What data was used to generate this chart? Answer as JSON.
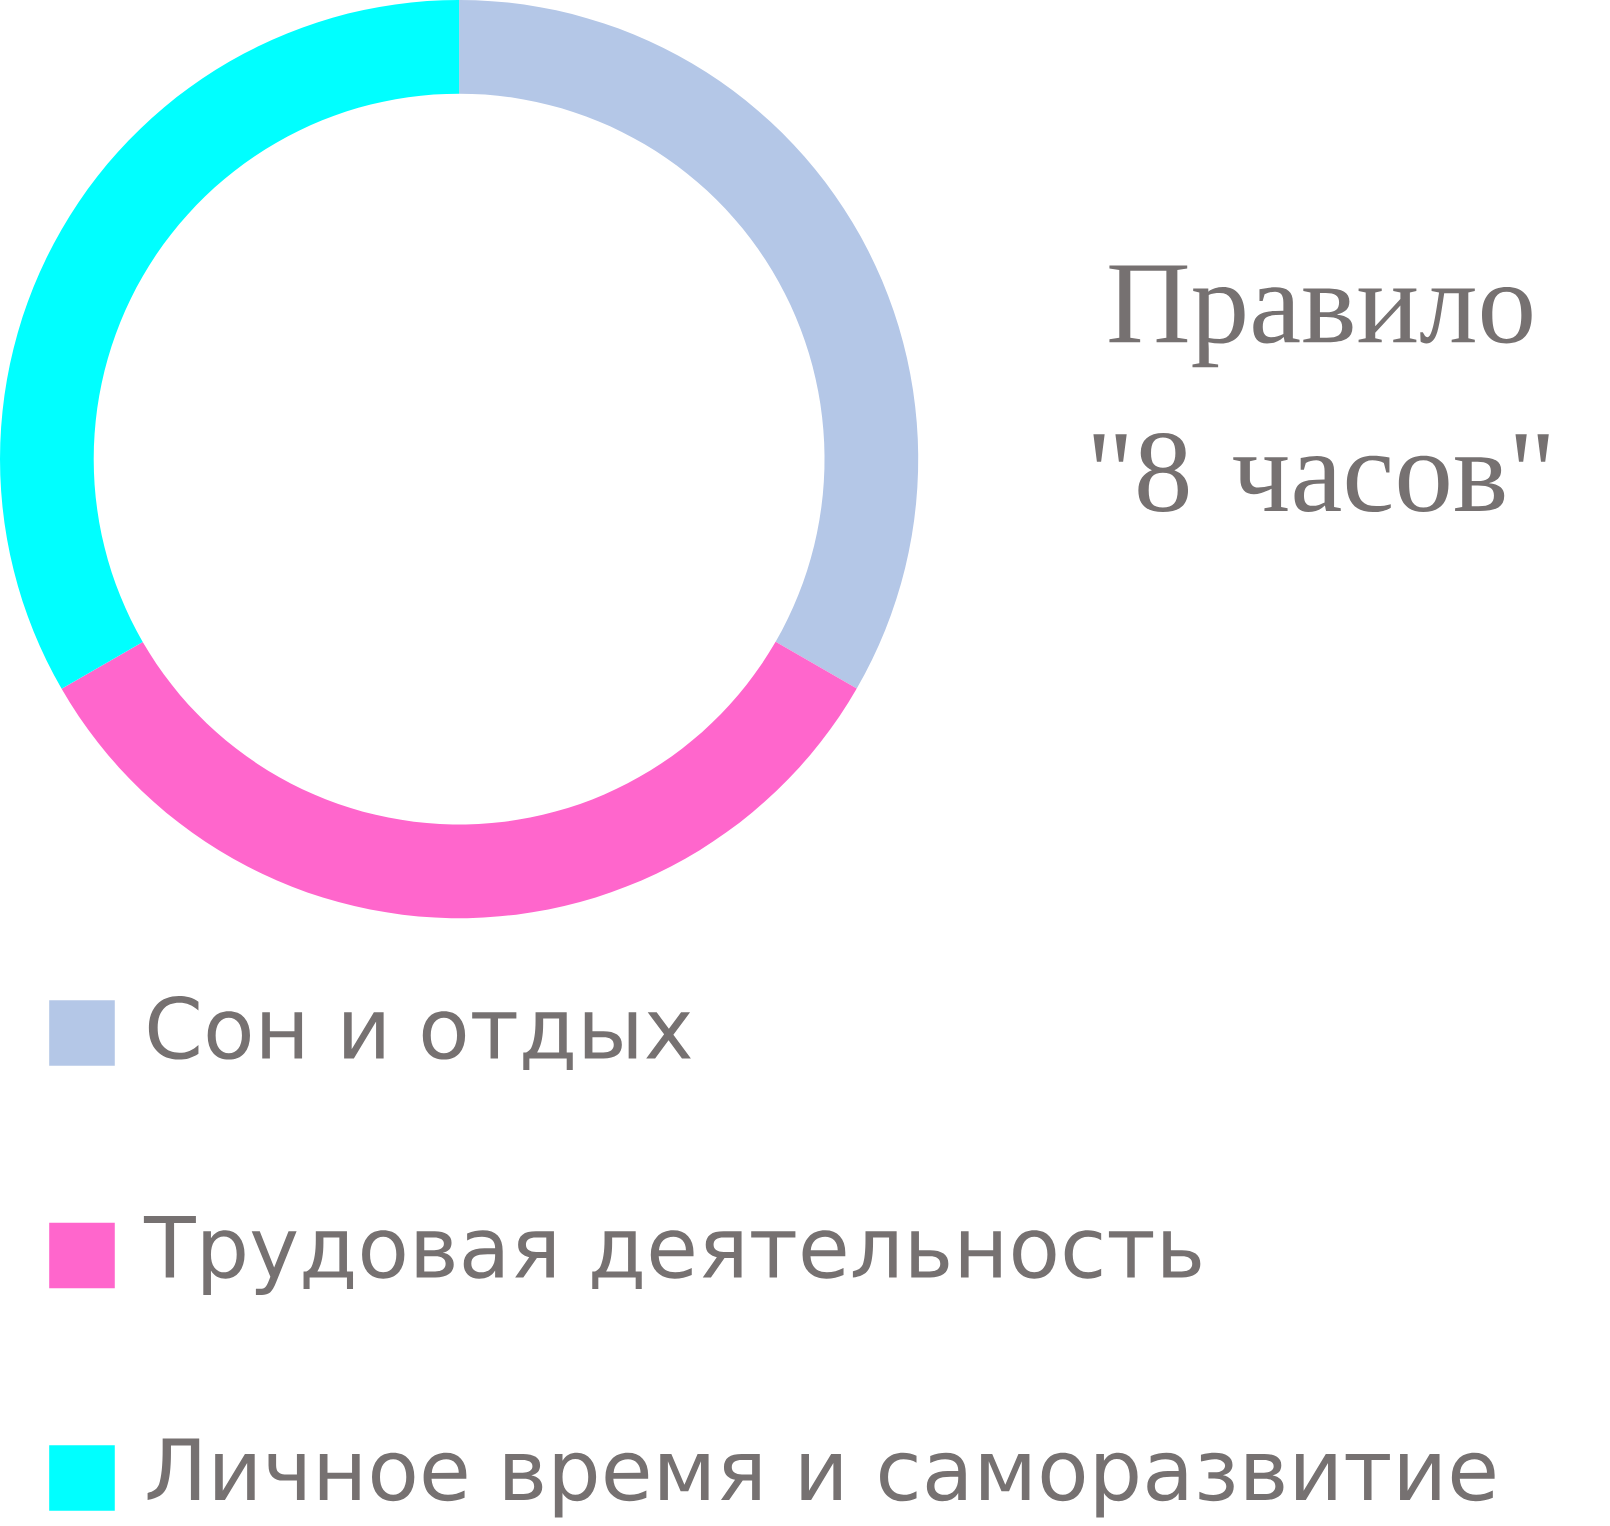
{
  "chart_data": {
    "type": "donut",
    "title": "Правило \"8 часов\"",
    "categories": [
      "Сон и отдых",
      "Трудовая деятельность",
      "Личное время и саморазвитие"
    ],
    "values": [
      33.33,
      33.33,
      33.34
    ],
    "colors": [
      "#b4c7e7",
      "#ff66cc",
      "#00ffff"
    ],
    "legend": "bottom"
  }
}
